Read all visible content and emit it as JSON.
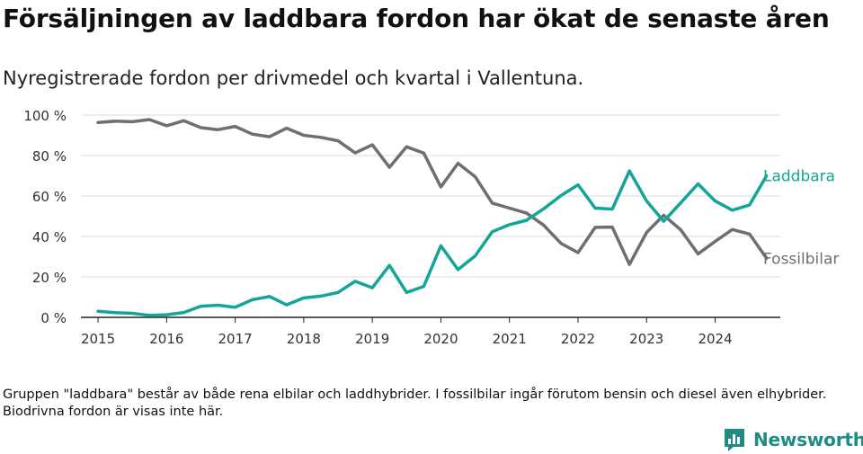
{
  "title": "Försäljningen av laddbara fordon har ökat de senaste åren",
  "subtitle": "Nyregistrerade fordon per drivmedel och kvartal i Vallentuna.",
  "note": "Gruppen \"laddbara\" består av både rena elbilar och laddhybrider. I fossilbilar ingår förutom bensin och diesel även elhybrider. Biodrivna fordon är visas inte här.",
  "brand": {
    "name": "Newsworthy",
    "icon": "newsworthy-logo-icon",
    "color": "#1f8c84"
  },
  "chart_data": {
    "type": "line",
    "title": "Försäljningen av laddbara fordon har ökat de senaste åren",
    "xlabel": "",
    "ylabel": "",
    "ylim": [
      0,
      100
    ],
    "yticks": [
      0,
      20,
      40,
      60,
      80,
      100
    ],
    "ytick_labels": [
      "0 %",
      "20 %",
      "40 %",
      "60 %",
      "80 %",
      "100 %"
    ],
    "xticks": [
      2015,
      2016,
      2017,
      2018,
      2019,
      2020,
      2021,
      2022,
      2023,
      2024
    ],
    "xlim": [
      2014.75,
      2024.95
    ],
    "grid": true,
    "x": [
      2015.0,
      2015.25,
      2015.5,
      2015.75,
      2016.0,
      2016.25,
      2016.5,
      2016.75,
      2017.0,
      2017.25,
      2017.5,
      2017.75,
      2018.0,
      2018.25,
      2018.5,
      2018.75,
      2019.0,
      2019.25,
      2019.5,
      2019.75,
      2020.0,
      2020.25,
      2020.5,
      2020.75,
      2021.0,
      2021.25,
      2021.5,
      2021.75,
      2022.0,
      2022.25,
      2022.5,
      2022.75,
      2023.0,
      2023.25,
      2023.5,
      2023.75,
      2024.0,
      2024.25,
      2024.5,
      2024.75
    ],
    "series": [
      {
        "name": "Laddbara",
        "color": "#13a59a",
        "values": [
          3,
          2.3,
          2,
          1,
          1.3,
          2.4,
          5.5,
          6,
          5,
          8.7,
          10.3,
          6.2,
          9.6,
          10.5,
          12.3,
          17.8,
          14.6,
          25.7,
          12.3,
          15.3,
          35.4,
          23.6,
          30.4,
          42.3,
          45.8,
          48,
          53.7,
          60.2,
          65.5,
          54,
          53.5,
          72.4,
          57.5,
          47.5,
          56.7,
          66,
          57.5,
          53,
          55.5,
          70
        ]
      },
      {
        "name": "Fossilbilar",
        "color": "#6f6e72",
        "values": [
          96.3,
          97,
          96.7,
          97.8,
          94.7,
          97.2,
          93.8,
          92.8,
          94.4,
          90.6,
          89.3,
          93.5,
          90,
          89,
          87.3,
          81.3,
          85.3,
          74.2,
          84.3,
          81.2,
          64.5,
          76.2,
          69.5,
          56.5,
          54,
          51.5,
          45.5,
          36.6,
          32,
          44.5,
          44.6,
          26.2,
          42,
          50.5,
          43.2,
          31.4,
          37.5,
          43.4,
          41.2,
          29.2
        ]
      }
    ]
  }
}
